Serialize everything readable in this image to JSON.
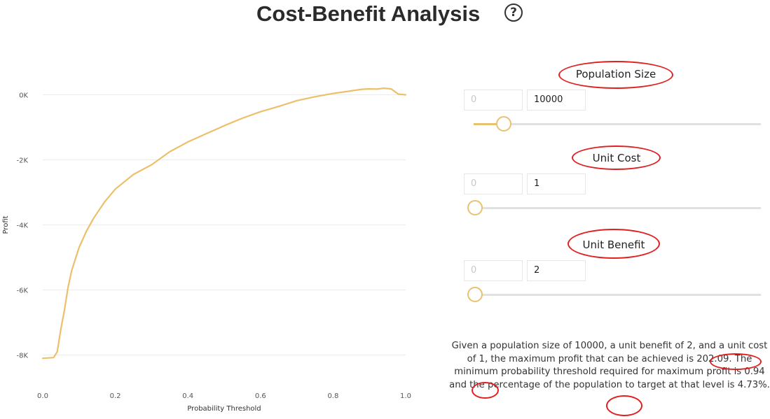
{
  "header": {
    "title": "Cost-Benefit Analysis",
    "help_icon": "?"
  },
  "colors": {
    "line": "#ecc06a",
    "accent": "#e8c270",
    "annotation_ring": "#e02020"
  },
  "controls": {
    "population": {
      "label": "Population Size",
      "min": "0",
      "max": "10000",
      "slider_value": 0.1
    },
    "unit_cost": {
      "label": "Unit Cost",
      "min": "0",
      "max": "1",
      "slider_value": 0.0
    },
    "unit_benefit": {
      "label": "Unit Benefit",
      "min": "0",
      "max": "2",
      "slider_value": 0.0
    }
  },
  "summary": {
    "part1": "Given a population size of 10000, a unit benefit of 2, and a unit cost of 1, the maximum profit that can be achieved is ",
    "max_profit": "202.09",
    "part2": ". The minimum probability threshold required for maximum profit is ",
    "threshold": "0.94",
    "part3": " and the percentage of the population to target at that level is ",
    "percentage": "4.73%",
    "part4": "."
  },
  "chart_data": {
    "type": "line",
    "xlabel": "Probability Threshold",
    "ylabel": "Profit",
    "xlim": [
      0,
      1
    ],
    "ylim": [
      -9000,
      1000
    ],
    "xticks": [
      0.0,
      0.2,
      0.4,
      0.6,
      0.8,
      1.0
    ],
    "xtick_labels": [
      "0.0",
      "0.2",
      "0.4",
      "0.6",
      "0.8",
      "1.0"
    ],
    "yticks": [
      0,
      -2000,
      -4000,
      -6000,
      -8000
    ],
    "ytick_labels": [
      "0K",
      "-2K",
      "-4K",
      "-6K",
      "-8K"
    ],
    "grid": true,
    "series": [
      {
        "x": [
          0.0,
          0.03,
          0.04,
          0.05,
          0.06,
          0.07,
          0.08,
          0.1,
          0.12,
          0.14,
          0.17,
          0.2,
          0.25,
          0.3,
          0.35,
          0.4,
          0.45,
          0.5,
          0.55,
          0.6,
          0.65,
          0.7,
          0.75,
          0.8,
          0.85,
          0.88,
          0.9,
          0.92,
          0.94,
          0.96,
          0.98,
          1.0
        ],
        "y": [
          -8100,
          -8080,
          -7900,
          -7200,
          -6600,
          -5900,
          -5400,
          -4700,
          -4200,
          -3800,
          -3300,
          -2900,
          -2450,
          -2150,
          -1750,
          -1450,
          -1200,
          -950,
          -720,
          -520,
          -360,
          -180,
          -60,
          40,
          120,
          170,
          180,
          175,
          202,
          180,
          20,
          0
        ]
      }
    ]
  }
}
